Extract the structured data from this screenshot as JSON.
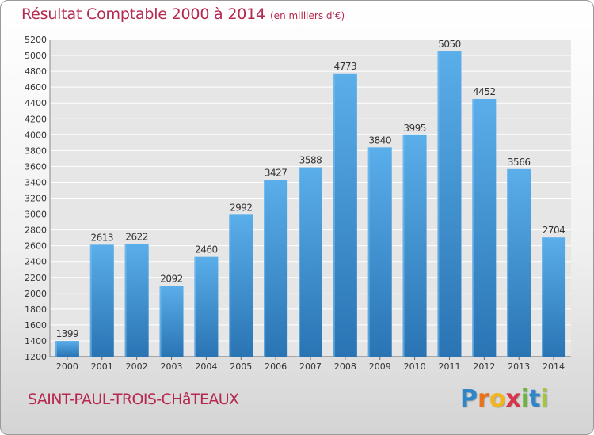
{
  "chart_data": {
    "type": "bar",
    "title": "Résultat Comptable 2000 à 2014",
    "subtitle": "(en milliers d'€)",
    "categories": [
      "2000",
      "2001",
      "2002",
      "2003",
      "2004",
      "2005",
      "2006",
      "2007",
      "2008",
      "2009",
      "2010",
      "2011",
      "2012",
      "2013",
      "2014"
    ],
    "values": [
      1399,
      2613,
      2622,
      2092,
      2460,
      2992,
      3427,
      3588,
      4773,
      3840,
      3995,
      5050,
      4452,
      3566,
      2704
    ],
    "ylim": [
      1200,
      5200
    ],
    "ytick_step": 200,
    "xlabel": "",
    "ylabel": "",
    "grid": true,
    "bar_color": "#4a9ede"
  },
  "place": "SAINT-PAUL-TROIS-CHâTEAUX",
  "logo": {
    "text": "Proxiti",
    "letters": [
      {
        "ch": "P",
        "color": "#2e86c8"
      },
      {
        "ch": "r",
        "color": "#e8731a"
      },
      {
        "ch": "o",
        "color": "#f2b51f"
      },
      {
        "ch": "x",
        "color": "#d9344a"
      },
      {
        "ch": "i",
        "color": "#6cb33f"
      },
      {
        "ch": "t",
        "color": "#2e86c8"
      },
      {
        "ch": "i",
        "color": "#a4c63a"
      }
    ]
  }
}
